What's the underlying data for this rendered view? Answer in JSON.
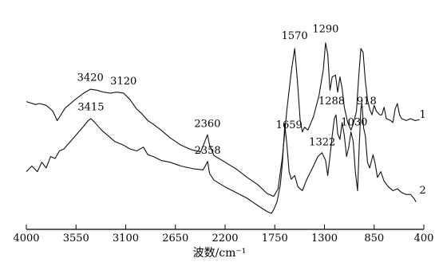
{
  "chart_data": {
    "type": "line",
    "xlabel": "波数/cm⁻¹",
    "ylabel": "",
    "xlim": [
      4000,
      400
    ],
    "x_reversed": true,
    "y_scale_visible": false,
    "grid": false,
    "xticks": [
      4000,
      3550,
      3100,
      2650,
      2200,
      1750,
      1300,
      850,
      400
    ],
    "series": [
      {
        "name": "1",
        "points": [
          [
            4000,
            0.59
          ],
          [
            3920,
            0.575
          ],
          [
            3880,
            0.58
          ],
          [
            3820,
            0.57
          ],
          [
            3760,
            0.54
          ],
          [
            3720,
            0.49
          ],
          [
            3650,
            0.555
          ],
          [
            3560,
            0.6
          ],
          [
            3480,
            0.635
          ],
          [
            3420,
            0.655
          ],
          [
            3360,
            0.65
          ],
          [
            3300,
            0.64
          ],
          [
            3240,
            0.635
          ],
          [
            3180,
            0.64
          ],
          [
            3120,
            0.635
          ],
          [
            3060,
            0.6
          ],
          [
            3000,
            0.55
          ],
          [
            2960,
            0.53
          ],
          [
            2900,
            0.49
          ],
          [
            2850,
            0.47
          ],
          [
            2780,
            0.44
          ],
          [
            2700,
            0.4
          ],
          [
            2600,
            0.36
          ],
          [
            2500,
            0.335
          ],
          [
            2420,
            0.325
          ],
          [
            2370,
            0.4
          ],
          [
            2360,
            0.415
          ],
          [
            2340,
            0.36
          ],
          [
            2300,
            0.305
          ],
          [
            2200,
            0.27
          ],
          [
            2100,
            0.235
          ],
          [
            2000,
            0.19
          ],
          [
            1900,
            0.15
          ],
          [
            1820,
            0.105
          ],
          [
            1760,
            0.09
          ],
          [
            1720,
            0.13
          ],
          [
            1680,
            0.3
          ],
          [
            1640,
            0.55
          ],
          [
            1600,
            0.75
          ],
          [
            1570,
            0.87
          ],
          [
            1545,
            0.7
          ],
          [
            1520,
            0.49
          ],
          [
            1500,
            0.43
          ],
          [
            1480,
            0.455
          ],
          [
            1450,
            0.44
          ],
          [
            1400,
            0.51
          ],
          [
            1350,
            0.62
          ],
          [
            1310,
            0.76
          ],
          [
            1290,
            0.9
          ],
          [
            1270,
            0.84
          ],
          [
            1250,
            0.65
          ],
          [
            1230,
            0.72
          ],
          [
            1200,
            0.73
          ],
          [
            1180,
            0.64
          ],
          [
            1160,
            0.72
          ],
          [
            1140,
            0.66
          ],
          [
            1120,
            0.56
          ],
          [
            1090,
            0.48
          ],
          [
            1060,
            0.44
          ],
          [
            1040,
            0.47
          ],
          [
            1010,
            0.54
          ],
          [
            990,
            0.72
          ],
          [
            970,
            0.87
          ],
          [
            950,
            0.85
          ],
          [
            930,
            0.7
          ],
          [
            910,
            0.6
          ],
          [
            890,
            0.55
          ],
          [
            870,
            0.52
          ],
          [
            850,
            0.57
          ],
          [
            830,
            0.54
          ],
          [
            800,
            0.52
          ],
          [
            780,
            0.52
          ],
          [
            760,
            0.56
          ],
          [
            740,
            0.5
          ],
          [
            700,
            0.49
          ],
          [
            680,
            0.48
          ],
          [
            660,
            0.55
          ],
          [
            640,
            0.58
          ],
          [
            620,
            0.52
          ],
          [
            600,
            0.5
          ],
          [
            560,
            0.49
          ],
          [
            520,
            0.5
          ],
          [
            480,
            0.49
          ],
          [
            440,
            0.495
          ]
        ]
      },
      {
        "name": "2",
        "points": [
          [
            4000,
            0.22
          ],
          [
            3950,
            0.25
          ],
          [
            3900,
            0.22
          ],
          [
            3860,
            0.27
          ],
          [
            3820,
            0.24
          ],
          [
            3780,
            0.3
          ],
          [
            3740,
            0.29
          ],
          [
            3700,
            0.33
          ],
          [
            3660,
            0.34
          ],
          [
            3600,
            0.38
          ],
          [
            3540,
            0.42
          ],
          [
            3480,
            0.46
          ],
          [
            3440,
            0.49
          ],
          [
            3415,
            0.5
          ],
          [
            3380,
            0.48
          ],
          [
            3320,
            0.44
          ],
          [
            3260,
            0.41
          ],
          [
            3200,
            0.38
          ],
          [
            3120,
            0.36
          ],
          [
            3060,
            0.34
          ],
          [
            3000,
            0.33
          ],
          [
            2940,
            0.35
          ],
          [
            2900,
            0.31
          ],
          [
            2850,
            0.3
          ],
          [
            2780,
            0.28
          ],
          [
            2700,
            0.27
          ],
          [
            2600,
            0.25
          ],
          [
            2480,
            0.235
          ],
          [
            2400,
            0.23
          ],
          [
            2375,
            0.255
          ],
          [
            2358,
            0.275
          ],
          [
            2340,
            0.21
          ],
          [
            2300,
            0.175
          ],
          [
            2200,
            0.14
          ],
          [
            2100,
            0.11
          ],
          [
            2000,
            0.08
          ],
          [
            1900,
            0.04
          ],
          [
            1820,
            0.01
          ],
          [
            1780,
            0.0
          ],
          [
            1760,
            0.02
          ],
          [
            1730,
            0.06
          ],
          [
            1700,
            0.15
          ],
          [
            1680,
            0.27
          ],
          [
            1659,
            0.47
          ],
          [
            1640,
            0.36
          ],
          [
            1620,
            0.22
          ],
          [
            1600,
            0.18
          ],
          [
            1570,
            0.2
          ],
          [
            1540,
            0.14
          ],
          [
            1500,
            0.12
          ],
          [
            1460,
            0.18
          ],
          [
            1400,
            0.25
          ],
          [
            1360,
            0.3
          ],
          [
            1322,
            0.32
          ],
          [
            1290,
            0.28
          ],
          [
            1270,
            0.2
          ],
          [
            1250,
            0.3
          ],
          [
            1230,
            0.41
          ],
          [
            1210,
            0.5
          ],
          [
            1195,
            0.52
          ],
          [
            1180,
            0.42
          ],
          [
            1160,
            0.39
          ],
          [
            1140,
            0.48
          ],
          [
            1120,
            0.41
          ],
          [
            1100,
            0.3
          ],
          [
            1080,
            0.35
          ],
          [
            1060,
            0.43
          ],
          [
            1040,
            0.38
          ],
          [
            1020,
            0.22
          ],
          [
            1000,
            0.12
          ],
          [
            985,
            0.36
          ],
          [
            970,
            0.55
          ],
          [
            960,
            0.58
          ],
          [
            945,
            0.45
          ],
          [
            930,
            0.41
          ],
          [
            910,
            0.27
          ],
          [
            890,
            0.24
          ],
          [
            860,
            0.31
          ],
          [
            840,
            0.26
          ],
          [
            820,
            0.19
          ],
          [
            790,
            0.22
          ],
          [
            760,
            0.17
          ],
          [
            720,
            0.14
          ],
          [
            680,
            0.12
          ],
          [
            640,
            0.13
          ],
          [
            600,
            0.11
          ],
          [
            560,
            0.1
          ],
          [
            520,
            0.1
          ],
          [
            490,
            0.08
          ],
          [
            470,
            0.06
          ]
        ]
      }
    ],
    "series_tags": [
      {
        "text": "1",
        "x": 440,
        "y": 0.505
      },
      {
        "text": "2",
        "x": 440,
        "y": 0.105
      }
    ],
    "annotations": [
      {
        "text": "3420",
        "x": 3420,
        "y": 0.7
      },
      {
        "text": "3120",
        "x": 3120,
        "y": 0.68
      },
      {
        "text": "3415",
        "x": 3415,
        "y": 0.545
      },
      {
        "text": "2360",
        "x": 2360,
        "y": 0.455
      },
      {
        "text": "2358",
        "x": 2358,
        "y": 0.315
      },
      {
        "text": "1570",
        "x": 1570,
        "y": 0.92
      },
      {
        "text": "1290",
        "x": 1290,
        "y": 0.955
      },
      {
        "text": "1659",
        "x": 1620,
        "y": 0.45
      },
      {
        "text": "1322",
        "x": 1320,
        "y": 0.36
      },
      {
        "text": "1288",
        "x": 1235,
        "y": 0.575
      },
      {
        "text": "918",
        "x": 918,
        "y": 0.575
      },
      {
        "text": "1030",
        "x": 1030,
        "y": 0.465
      }
    ]
  }
}
